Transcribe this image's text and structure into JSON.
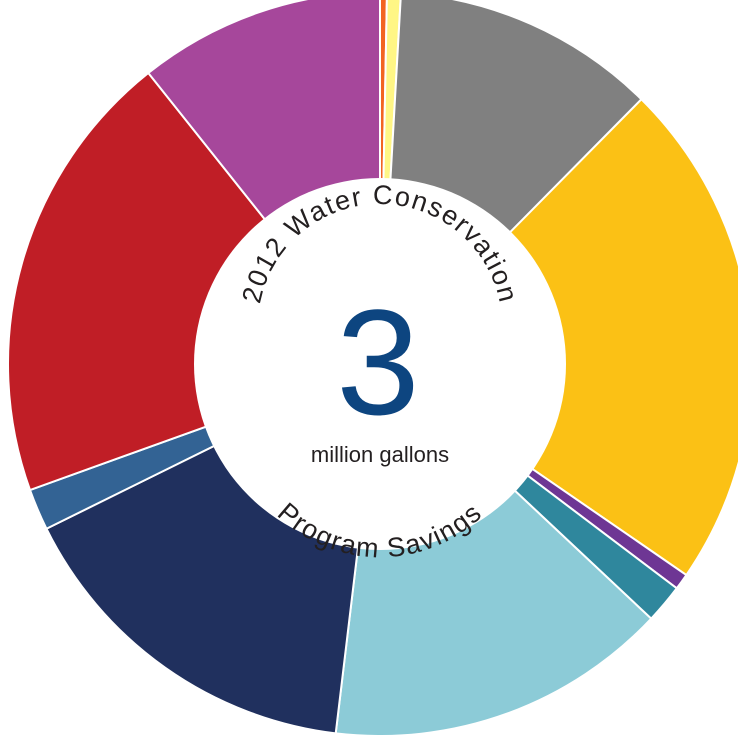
{
  "chart_data": {
    "type": "pie",
    "donut": true,
    "title_top": "2012 Water Conservation",
    "title_bottom": "Program Savings",
    "center_value": "3",
    "center_unit": "million gallons",
    "legend": "none",
    "slices": [
      {
        "value": 0.3,
        "color": "#f26522"
      },
      {
        "value": 0.6,
        "color": "#fff685"
      },
      {
        "value": 11.5,
        "color": "#808080"
      },
      {
        "value": 22.2,
        "color": "#fbc115"
      },
      {
        "value": 0.7,
        "color": "#6e3694"
      },
      {
        "value": 1.7,
        "color": "#2f879d"
      },
      {
        "value": 14.9,
        "color": "#8ccbd7"
      },
      {
        "value": 15.8,
        "color": "#20305e"
      },
      {
        "value": 1.8,
        "color": "#336394"
      },
      {
        "value": 19.8,
        "color": "#c01e26"
      },
      {
        "value": 10.7,
        "color": "#a6479b"
      }
    ]
  }
}
